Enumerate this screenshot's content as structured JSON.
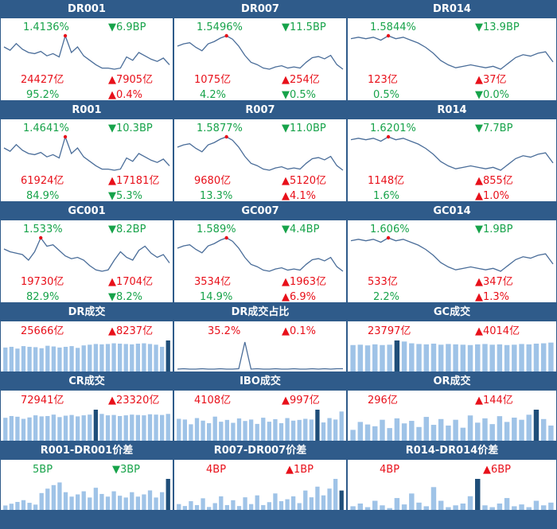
{
  "colors": {
    "header": "#2f5b8a",
    "up": "#e8101a",
    "down": "#17a34a",
    "line": "#4a6d99",
    "bar": "#9fc3e7",
    "bar_hl": "#1f4e79"
  },
  "rate_panels": [
    {
      "title": "DR001",
      "rate": "1.4136%",
      "bp": "▼6.9BP",
      "volume": "24427亿",
      "vol_change": "▲7905亿",
      "share": "95.2%",
      "share_change": "▲0.4%",
      "series": [
        52,
        49,
        55,
        50,
        47,
        46,
        48,
        44,
        46,
        43,
        62,
        47,
        52,
        44,
        40,
        36,
        33,
        33,
        32,
        33,
        43,
        40,
        47,
        44,
        41,
        39,
        42,
        36
      ]
    },
    {
      "title": "DR007",
      "rate": "1.5496%",
      "bp": "▼11.5BP",
      "volume": "1075亿",
      "vol_change": "▲254亿",
      "share": "4.2%",
      "share_change": "▼0.5%",
      "series": [
        56,
        58,
        59,
        55,
        52,
        58,
        60,
        63,
        65,
        62,
        56,
        48,
        42,
        40,
        37,
        36,
        38,
        39,
        37,
        38,
        37,
        42,
        46,
        47,
        45,
        48,
        40,
        36
      ]
    },
    {
      "title": "DR014",
      "rate": "1.5844%",
      "bp": "▼13.9BP",
      "volume": "123亿",
      "vol_change": "▲37亿",
      "share": "0.5%",
      "share_change": "▼0.0%",
      "series": [
        58,
        59,
        58,
        59,
        57,
        60,
        58,
        59,
        57,
        55,
        52,
        48,
        43,
        40,
        38,
        39,
        40,
        39,
        38,
        39,
        37,
        41,
        45,
        47,
        46,
        48,
        49,
        42
      ]
    },
    {
      "title": "R001",
      "rate": "1.4641%",
      "bp": "▼10.3BP",
      "volume": "61924亿",
      "vol_change": "▲17181亿",
      "share": "84.9%",
      "share_change": "▼5.3%",
      "series": [
        52,
        49,
        55,
        50,
        47,
        46,
        48,
        44,
        46,
        43,
        62,
        47,
        52,
        44,
        40,
        36,
        33,
        33,
        32,
        33,
        43,
        40,
        47,
        44,
        41,
        39,
        42,
        36
      ]
    },
    {
      "title": "R007",
      "rate": "1.5877%",
      "bp": "▼11.0BP",
      "volume": "9680亿",
      "vol_change": "▲5120亿",
      "share": "13.3%",
      "share_change": "▲4.1%",
      "series": [
        56,
        58,
        59,
        55,
        52,
        58,
        60,
        63,
        65,
        62,
        56,
        48,
        42,
        40,
        37,
        36,
        38,
        39,
        37,
        38,
        37,
        42,
        46,
        47,
        45,
        48,
        40,
        36
      ]
    },
    {
      "title": "R014",
      "rate": "1.6201%",
      "bp": "▼7.7BP",
      "volume": "1148亿",
      "vol_change": "▲855亿",
      "share": "1.6%",
      "share_change": "▲1.0%",
      "series": [
        58,
        59,
        58,
        59,
        57,
        60,
        58,
        59,
        57,
        55,
        52,
        48,
        43,
        40,
        38,
        39,
        40,
        39,
        38,
        39,
        37,
        41,
        45,
        47,
        46,
        48,
        49,
        42
      ]
    },
    {
      "title": "GC001",
      "rate": "1.533%",
      "bp": "▼8.2BP",
      "volume": "19730亿",
      "vol_change": "▲1704亿",
      "share": "82.9%",
      "share_change": "▼8.2%",
      "series": [
        50,
        48,
        47,
        46,
        42,
        48,
        58,
        52,
        53,
        49,
        45,
        43,
        44,
        42,
        38,
        35,
        34,
        35,
        42,
        48,
        44,
        42,
        49,
        52,
        47,
        44,
        46,
        40
      ]
    },
    {
      "title": "GC007",
      "rate": "1.589%",
      "bp": "▼4.4BP",
      "volume": "3534亿",
      "vol_change": "▲1963亿",
      "share": "14.9%",
      "share_change": "▲6.9%",
      "series": [
        56,
        58,
        59,
        55,
        52,
        58,
        60,
        63,
        65,
        62,
        56,
        48,
        42,
        40,
        37,
        36,
        38,
        39,
        37,
        38,
        37,
        42,
        46,
        47,
        45,
        48,
        40,
        36
      ]
    },
    {
      "title": "GC014",
      "rate": "1.606%",
      "bp": "▼1.9BP",
      "volume": "533亿",
      "vol_change": "▲347亿",
      "share": "2.2%",
      "share_change": "▲1.3%",
      "series": [
        58,
        59,
        58,
        59,
        57,
        60,
        58,
        59,
        57,
        55,
        52,
        48,
        43,
        40,
        38,
        39,
        40,
        39,
        38,
        39,
        37,
        41,
        45,
        47,
        46,
        48,
        49,
        42
      ]
    }
  ],
  "volume_panels": [
    {
      "title": "DR成交",
      "kind": "bar",
      "volume": "25666亿",
      "change": "▲8237亿",
      "highlight": 27,
      "series": [
        68,
        70,
        65,
        72,
        70,
        69,
        66,
        73,
        71,
        68,
        70,
        72,
        67,
        74,
        76,
        78,
        77,
        78,
        80,
        79,
        78,
        77,
        79,
        80,
        78,
        76,
        70,
        88
      ]
    },
    {
      "title": "DR成交占比",
      "kind": "line",
      "volume": "35.2%",
      "change": "▲0.1%",
      "series": [
        5,
        6,
        5,
        5,
        6,
        5,
        5,
        6,
        5,
        5,
        6,
        70,
        5,
        6,
        5,
        5,
        6,
        5,
        5,
        6,
        5,
        5,
        6,
        5,
        6,
        5,
        6,
        6
      ]
    },
    {
      "title": "GC成交",
      "kind": "bar",
      "volume": "23797亿",
      "change": "▲4014亿",
      "highlight": 6,
      "series": [
        75,
        76,
        74,
        77,
        75,
        76,
        88,
        85,
        80,
        78,
        77,
        79,
        76,
        78,
        77,
        76,
        75,
        77,
        78,
        76,
        77,
        75,
        76,
        78,
        77,
        79,
        80,
        82
      ]
    },
    {
      "title": "CR成交",
      "kind": "bar",
      "volume": "72941亿",
      "change": "▲23320亿",
      "highlight": 15,
      "series": [
        65,
        70,
        68,
        62,
        66,
        72,
        69,
        70,
        74,
        67,
        71,
        73,
        69,
        72,
        74,
        88,
        76,
        72,
        73,
        70,
        72,
        74,
        73,
        72,
        75,
        74,
        73,
        76
      ]
    },
    {
      "title": "IBO成交",
      "kind": "bar",
      "volume": "4108亿",
      "change": "▲997亿",
      "highlight": 23,
      "series": [
        60,
        58,
        45,
        62,
        55,
        48,
        66,
        52,
        57,
        49,
        61,
        54,
        58,
        46,
        63,
        52,
        59,
        48,
        62,
        55,
        57,
        60,
        58,
        85,
        50,
        62,
        58,
        80
      ]
    },
    {
      "title": "OR成交",
      "kind": "bar",
      "volume": "296亿",
      "change": "▲144亿",
      "highlight": 25,
      "series": [
        30,
        52,
        45,
        40,
        58,
        35,
        62,
        48,
        55,
        38,
        66,
        44,
        60,
        42,
        58,
        36,
        70,
        50,
        62,
        46,
        68,
        52,
        64,
        58,
        72,
        86,
        60,
        42
      ]
    }
  ],
  "spread_panels": [
    {
      "title": "R001-DR001价差",
      "bp": "5BP",
      "change": "▼3BP",
      "highlight": 27,
      "series": [
        10,
        14,
        18,
        22,
        16,
        12,
        38,
        48,
        56,
        62,
        40,
        30,
        35,
        42,
        28,
        50,
        36,
        30,
        42,
        32,
        28,
        40,
        30,
        35,
        44,
        28,
        40,
        70
      ]
    },
    {
      "title": "R007-DR007价差",
      "bp": "4BP",
      "change": "▲1BP",
      "highlight": 27,
      "series": [
        12,
        8,
        18,
        10,
        24,
        6,
        14,
        28,
        10,
        20,
        8,
        26,
        12,
        30,
        10,
        16,
        34,
        18,
        22,
        28,
        14,
        40,
        26,
        48,
        30,
        44,
        64,
        40
      ]
    },
    {
      "title": "R014-DR014价差",
      "bp": "4BP",
      "change": "▲6BP",
      "highlight": 17,
      "series": [
        8,
        14,
        6,
        20,
        10,
        4,
        26,
        12,
        36,
        16,
        8,
        50,
        20,
        6,
        10,
        14,
        30,
        68,
        10,
        6,
        14,
        26,
        8,
        12,
        6,
        20,
        10,
        16
      ]
    }
  ]
}
